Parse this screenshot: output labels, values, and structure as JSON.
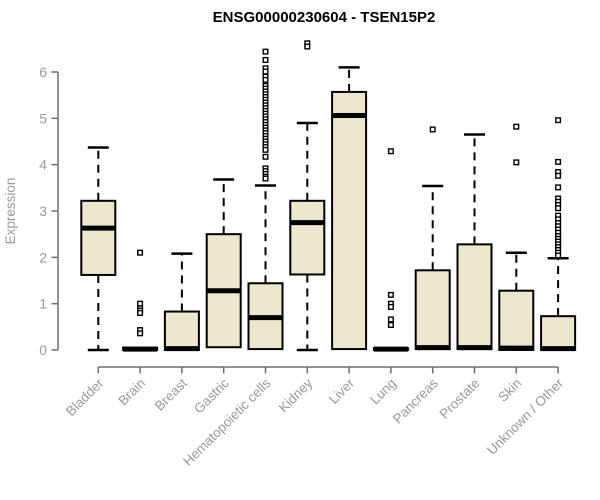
{
  "chart_data": {
    "type": "boxplot",
    "title": "ENSG00000230604 - TSEN15P2",
    "ylabel": "Expression",
    "xlabel": "",
    "ylim": [
      0,
      6.7
    ],
    "yticks": [
      0,
      1,
      2,
      3,
      4,
      5,
      6
    ],
    "grid": false,
    "legend": "none",
    "colors": {
      "box_fill": "#EDE7CE",
      "box_stroke": "#000000",
      "median": "#000000",
      "whisker": "#000000",
      "outlier_stroke": "#000000",
      "outlier_fill": "#ffffff",
      "axis": "#6e6e6e",
      "tick_label": "#9a9a9a",
      "title": "#000000",
      "background": "#ffffff"
    },
    "categories": [
      "Bladder",
      "Brain",
      "Breast",
      "Gastric",
      "Hematopoietic cells",
      "Kidney",
      "Liver",
      "Lung",
      "Pancreas",
      "Prostate",
      "Skin",
      "Unknown / Other"
    ],
    "series": [
      {
        "name": "Bladder",
        "whisker_low": 0,
        "q1": 1.62,
        "median": 2.63,
        "q3": 3.22,
        "whisker_high": 4.37,
        "outliers": []
      },
      {
        "name": "Brain",
        "whisker_low": 0,
        "q1": 0,
        "median": 0.02,
        "q3": 0.05,
        "whisker_high": 0.05,
        "outliers": [
          2.1,
          1.0,
          0.9,
          0.85,
          0.8,
          0.43,
          0.36
        ]
      },
      {
        "name": "Breast",
        "whisker_low": 0,
        "q1": 0,
        "median": 0.03,
        "q3": 0.83,
        "whisker_high": 2.08,
        "outliers": []
      },
      {
        "name": "Gastric",
        "whisker_low": 0.06,
        "q1": 0.06,
        "median": 1.28,
        "q3": 2.5,
        "whisker_high": 3.68,
        "outliers": []
      },
      {
        "name": "Hematopoietic cells",
        "whisker_low": 0,
        "q1": 0.02,
        "median": 0.7,
        "q3": 1.44,
        "whisker_high": 3.55,
        "outliers": [
          6.44,
          6.26,
          6.08,
          6.01,
          5.9,
          5.83,
          5.7,
          5.64,
          5.58,
          5.52,
          5.46,
          5.4,
          5.34,
          5.28,
          5.22,
          5.16,
          5.1,
          5.04,
          4.98,
          4.92,
          4.86,
          4.8,
          4.74,
          4.68,
          4.62,
          4.56,
          4.5,
          4.44,
          4.38,
          4.32,
          4.17,
          3.92,
          3.86,
          3.8,
          3.74,
          3.7
        ]
      },
      {
        "name": "Kidney",
        "whisker_low": 0,
        "q1": 1.63,
        "median": 2.75,
        "q3": 3.22,
        "whisker_high": 4.9,
        "outliers": [
          6.62,
          6.55
        ]
      },
      {
        "name": "Liver",
        "whisker_low": 0,
        "q1": 0.02,
        "median": 5.06,
        "q3": 5.57,
        "whisker_high": 6.1,
        "outliers": []
      },
      {
        "name": "Lung",
        "whisker_low": 0,
        "q1": 0,
        "median": 0.02,
        "q3": 0.04,
        "whisker_high": 0.04,
        "outliers": [
          4.29,
          1.19,
          1.0,
          0.93,
          0.66,
          0.54
        ]
      },
      {
        "name": "Pancreas",
        "whisker_low": 0.02,
        "q1": 0.02,
        "median": 0.05,
        "q3": 1.72,
        "whisker_high": 3.54,
        "outliers": [
          4.76
        ]
      },
      {
        "name": "Prostate",
        "whisker_low": 0.02,
        "q1": 0.02,
        "median": 0.05,
        "q3": 2.28,
        "whisker_high": 4.65,
        "outliers": []
      },
      {
        "name": "Skin",
        "whisker_low": 0,
        "q1": 0,
        "median": 0.04,
        "q3": 1.28,
        "whisker_high": 2.1,
        "outliers": [
          4.82,
          4.05
        ]
      },
      {
        "name": "Unknown / Other",
        "whisker_low": 0,
        "q1": 0,
        "median": 0.03,
        "q3": 0.73,
        "whisker_high": 1.98,
        "outliers": [
          4.96,
          4.06,
          3.84,
          3.76,
          3.51,
          3.27,
          3.2,
          3.13,
          3.06,
          2.9,
          2.82,
          2.74,
          2.67,
          2.6,
          2.53,
          2.46,
          2.4,
          2.34,
          2.28,
          2.22,
          2.16,
          2.1,
          2.04
        ]
      }
    ]
  }
}
